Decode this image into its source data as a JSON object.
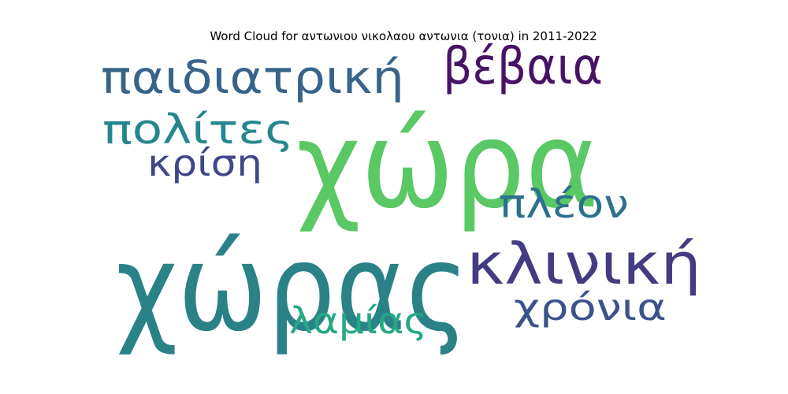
{
  "chart_data": {
    "type": "wordcloud",
    "title": "Word Cloud for αντωνιου νικολαου αντωνια (τονια) in 2011-2022",
    "words": [
      {
        "text": "χώρα",
        "color": "#5ac864"
      },
      {
        "text": "χώρας",
        "color": "#2a8287"
      },
      {
        "text": "παιδιατρική",
        "color": "#38648c"
      },
      {
        "text": "βέβαια",
        "color": "#471365"
      },
      {
        "text": "κλινική",
        "color": "#433c83"
      },
      {
        "text": "πολίτες",
        "color": "#24878d"
      },
      {
        "text": "πλέον",
        "color": "#2d708e"
      },
      {
        "text": "χρόνια",
        "color": "#3b528b"
      },
      {
        "text": "κρίση",
        "color": "#404688"
      },
      {
        "text": "λαμίας",
        "color": "#25a885"
      }
    ]
  }
}
